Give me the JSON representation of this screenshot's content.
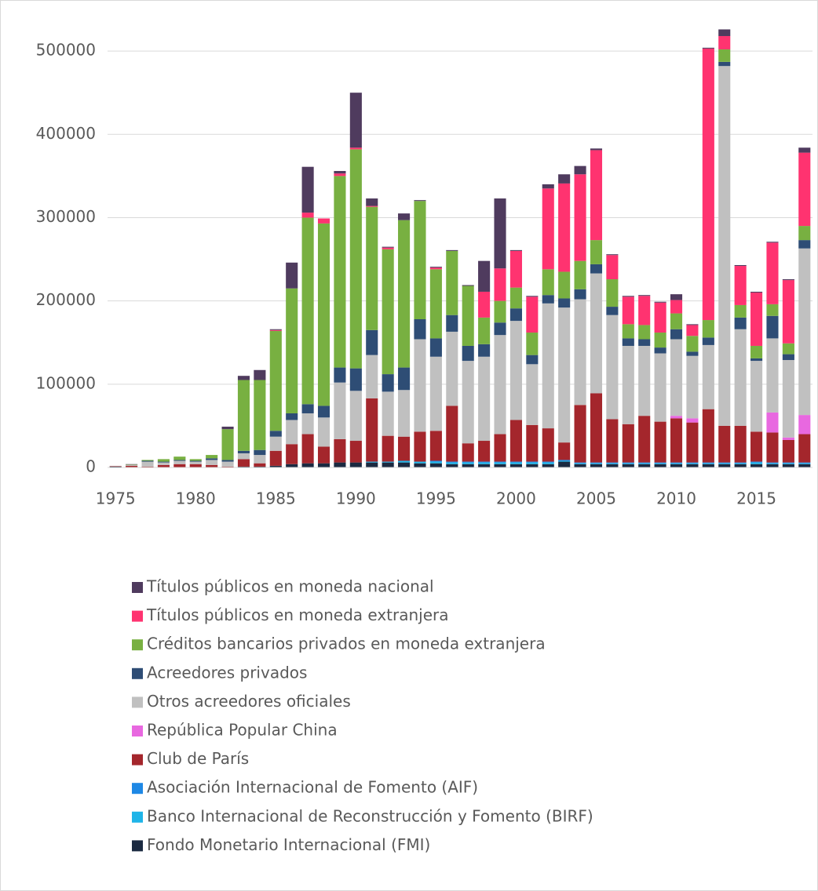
{
  "chart_data": {
    "type": "stacked_bar",
    "x": [
      1975,
      1976,
      1977,
      1978,
      1979,
      1980,
      1981,
      1982,
      1983,
      1984,
      1985,
      1986,
      1987,
      1988,
      1989,
      1990,
      1991,
      1992,
      1993,
      1994,
      1995,
      1996,
      1997,
      1998,
      1999,
      2000,
      2001,
      2002,
      2003,
      2004,
      2005,
      2006,
      2007,
      2008,
      2009,
      2010,
      2011,
      2012,
      2013,
      2014,
      2015,
      2016,
      2017,
      2018
    ],
    "xlim": [
      1974.5,
      2018.5
    ],
    "xticks": [
      1975,
      1980,
      1985,
      1990,
      1995,
      2000,
      2005,
      2010,
      2015
    ],
    "ylim": [
      0,
      550000
    ],
    "yticks": [
      0,
      100000,
      200000,
      300000,
      400000,
      500000
    ],
    "grid": true,
    "legend": "bottom",
    "series": [
      {
        "name": "Fondo Monetario Internacional (FMI)",
        "color": "#1b2a41",
        "values": [
          1000,
          0,
          0,
          0,
          0,
          0,
          0,
          0,
          1000,
          1000,
          2000,
          4000,
          5000,
          5000,
          6000,
          6000,
          6000,
          6000,
          6000,
          5000,
          5000,
          4000,
          4000,
          4000,
          4000,
          4000,
          4000,
          4000,
          7000,
          4000,
          4000,
          4000,
          4000,
          4000,
          4000,
          4000,
          4000,
          4000,
          4000,
          4000,
          4000,
          4000,
          4000,
          4000
        ]
      },
      {
        "name": "Banco Internacional de Reconstrucción y Fomento (BIRF)",
        "color": "#1fb4e8",
        "values": [
          0,
          0,
          0,
          0,
          0,
          0,
          0,
          0,
          0,
          0,
          0,
          0,
          0,
          0,
          0,
          0,
          1000,
          1000,
          2000,
          2000,
          2000,
          2000,
          2000,
          2000,
          2000,
          2000,
          2000,
          2000,
          1000,
          1000,
          1000,
          1000,
          1000,
          1000,
          1000,
          1000,
          1000,
          1000,
          1000,
          1000,
          2000,
          1000,
          1000,
          1000
        ]
      },
      {
        "name": "Asociación Internacional de Fomento (AIF)",
        "color": "#1e88e5",
        "values": [
          0,
          0,
          0,
          0,
          0,
          0,
          0,
          0,
          0,
          0,
          0,
          0,
          0,
          0,
          0,
          0,
          0,
          0,
          0,
          0,
          1000,
          1000,
          1000,
          1000,
          1000,
          1000,
          1000,
          1000,
          1000,
          1000,
          1000,
          1000,
          1000,
          1000,
          1000,
          1000,
          1000,
          1000,
          1000,
          1000,
          1000,
          1000,
          1000,
          1000
        ]
      },
      {
        "name": "Club de París",
        "color": "#a4262c",
        "values": [
          500,
          2000,
          1000,
          3000,
          4000,
          4000,
          3000,
          1000,
          9000,
          4000,
          18000,
          24000,
          35000,
          20000,
          28000,
          26000,
          76000,
          31000,
          29000,
          36000,
          36000,
          67000,
          22000,
          25000,
          33000,
          50000,
          44000,
          40000,
          21000,
          69000,
          83000,
          52000,
          46000,
          56000,
          49000,
          53000,
          48000,
          64000,
          44000,
          44000,
          36000,
          36000,
          27000,
          34000
        ]
      },
      {
        "name": "República Popular China",
        "color": "#e868e0",
        "values": [
          0,
          0,
          0,
          0,
          0,
          0,
          0,
          0,
          0,
          0,
          0,
          0,
          0,
          0,
          0,
          0,
          0,
          0,
          0,
          0,
          0,
          0,
          0,
          0,
          0,
          0,
          0,
          0,
          0,
          0,
          0,
          0,
          0,
          0,
          0,
          3000,
          5000,
          0,
          0,
          0,
          0,
          24000,
          3000,
          23000
        ]
      },
      {
        "name": "Otros acreedores oficiales",
        "color": "#c0c0c0",
        "values": [
          500,
          1000,
          6000,
          3000,
          4000,
          3000,
          6000,
          6000,
          7000,
          10000,
          17000,
          29000,
          25000,
          35000,
          68000,
          60000,
          52000,
          53000,
          56000,
          111000,
          89000,
          89000,
          99000,
          101000,
          119000,
          119000,
          73000,
          150000,
          162000,
          127000,
          144000,
          125000,
          94000,
          84000,
          82000,
          92000,
          75000,
          77000,
          432000,
          116000,
          85000,
          89000,
          93000,
          200000
        ]
      },
      {
        "name": "Acreedores privados",
        "color": "#2e4d75",
        "values": [
          0,
          0,
          1000,
          1000,
          1000,
          1000,
          2000,
          2000,
          3000,
          6000,
          7000,
          8000,
          11000,
          14000,
          18000,
          27000,
          30000,
          21000,
          27000,
          24000,
          22000,
          20000,
          18000,
          15000,
          15000,
          15000,
          11000,
          10000,
          11000,
          12000,
          11000,
          10000,
          9000,
          8000,
          7000,
          12000,
          5000,
          9000,
          5000,
          14000,
          3000,
          27000,
          7000,
          10000
        ]
      },
      {
        "name": "Créditos bancarios privados en moneda extranjera",
        "color": "#78b041",
        "values": [
          0,
          500,
          1000,
          3000,
          4000,
          2000,
          4000,
          37000,
          85000,
          84000,
          120000,
          150000,
          224000,
          219000,
          230000,
          263000,
          148000,
          150000,
          177000,
          142000,
          83000,
          77000,
          72000,
          32000,
          26000,
          25000,
          27000,
          31000,
          32000,
          34000,
          29000,
          33000,
          17000,
          17000,
          18000,
          19000,
          19000,
          21000,
          15000,
          15000,
          15000,
          14000,
          13000,
          17000
        ]
      },
      {
        "name": "Títulos públicos en moneda extranjera",
        "color": "#ff3370",
        "values": [
          0,
          0,
          0,
          0,
          0,
          0,
          0,
          0,
          0,
          0,
          1000,
          0,
          6000,
          6000,
          3000,
          2000,
          1000,
          2000,
          0,
          0,
          2000,
          0,
          0,
          31000,
          39000,
          44000,
          43000,
          97000,
          106000,
          104000,
          108000,
          29000,
          33000,
          35000,
          36000,
          16000,
          13000,
          326000,
          16000,
          47000,
          64000,
          74000,
          76000,
          88000
        ]
      },
      {
        "name": "Títulos públicos en moneda nacional",
        "color": "#4f3b5e",
        "values": [
          0,
          500,
          0,
          0,
          0,
          0,
          0,
          3000,
          5000,
          12000,
          1000,
          31000,
          55000,
          0,
          3000,
          66000,
          9000,
          1000,
          8000,
          1000,
          1000,
          1000,
          1000,
          37000,
          84000,
          1000,
          1000,
          5000,
          11000,
          10000,
          2000,
          1000,
          1000,
          1000,
          1000,
          7000,
          1000,
          1000,
          8000,
          1000,
          1000,
          1000,
          1000,
          6000
        ]
      }
    ]
  }
}
